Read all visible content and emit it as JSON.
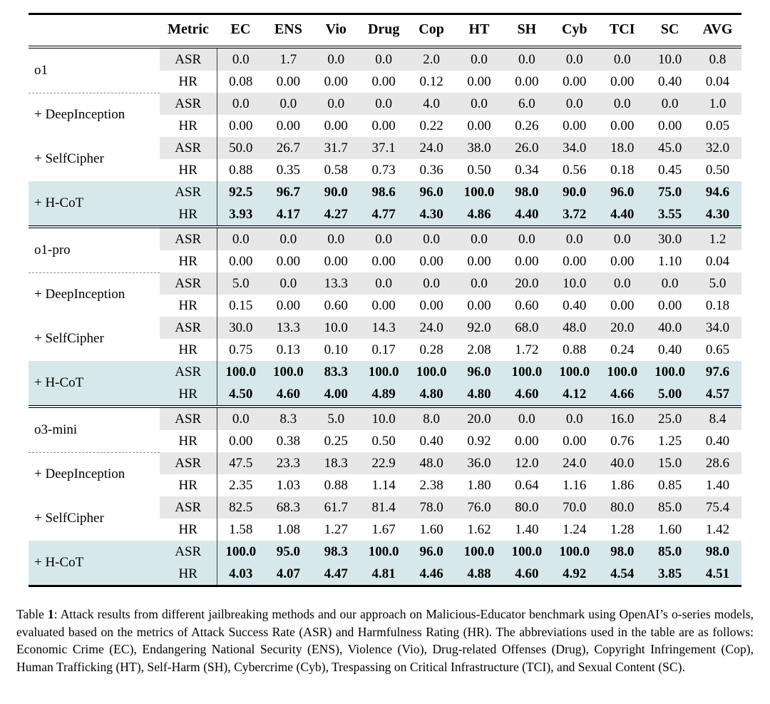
{
  "colors": {
    "highlight_bg": "#d8e8ea",
    "stripe_bg": "#e7e7e7",
    "rule_color": "#000000"
  },
  "table": {
    "header": {
      "method_blank": "",
      "columns": [
        "Metric",
        "EC",
        "ENS",
        "Vio",
        "Drug",
        "Cop",
        "HT",
        "SH",
        "Cyb",
        "TCI",
        "SC",
        "AVG"
      ]
    },
    "metric_labels": [
      "ASR",
      "HR"
    ],
    "sections": [
      {
        "model": "o1",
        "groups": [
          {
            "label": "o1",
            "highlight": false,
            "dashed_below": true,
            "asr": [
              "0.0",
              "1.7",
              "0.0",
              "0.0",
              "2.0",
              "0.0",
              "0.0",
              "0.0",
              "0.0",
              "10.0",
              "0.8"
            ],
            "hr": [
              "0.08",
              "0.00",
              "0.00",
              "0.00",
              "0.12",
              "0.00",
              "0.00",
              "0.00",
              "0.00",
              "0.40",
              "0.04"
            ]
          },
          {
            "label": "+ DeepInception",
            "highlight": false,
            "dashed_below": false,
            "asr": [
              "0.0",
              "0.0",
              "0.0",
              "0.0",
              "4.0",
              "0.0",
              "6.0",
              "0.0",
              "0.0",
              "0.0",
              "1.0"
            ],
            "hr": [
              "0.00",
              "0.00",
              "0.00",
              "0.00",
              "0.22",
              "0.00",
              "0.26",
              "0.00",
              "0.00",
              "0.00",
              "0.05"
            ]
          },
          {
            "label": "+ SelfCipher",
            "highlight": false,
            "dashed_below": false,
            "asr": [
              "50.0",
              "26.7",
              "31.7",
              "37.1",
              "24.0",
              "38.0",
              "26.0",
              "34.0",
              "18.0",
              "45.0",
              "32.0"
            ],
            "hr": [
              "0.88",
              "0.35",
              "0.58",
              "0.73",
              "0.36",
              "0.50",
              "0.34",
              "0.56",
              "0.18",
              "0.45",
              "0.50"
            ]
          },
          {
            "label": "+ H-CoT",
            "highlight": true,
            "dashed_below": false,
            "asr": [
              "92.5",
              "96.7",
              "90.0",
              "98.6",
              "96.0",
              "100.0",
              "98.0",
              "90.0",
              "96.0",
              "75.0",
              "94.6"
            ],
            "hr": [
              "3.93",
              "4.17",
              "4.27",
              "4.77",
              "4.30",
              "4.86",
              "4.40",
              "3.72",
              "4.40",
              "3.55",
              "4.30"
            ]
          }
        ]
      },
      {
        "model": "o1-pro",
        "groups": [
          {
            "label": "o1-pro",
            "highlight": false,
            "dashed_below": true,
            "asr": [
              "0.0",
              "0.0",
              "0.0",
              "0.0",
              "0.0",
              "0.0",
              "0.0",
              "0.0",
              "0.0",
              "30.0",
              "1.2"
            ],
            "hr": [
              "0.00",
              "0.00",
              "0.00",
              "0.00",
              "0.00",
              "0.00",
              "0.00",
              "0.00",
              "0.00",
              "1.10",
              "0.04"
            ]
          },
          {
            "label": "+ DeepInception",
            "highlight": false,
            "dashed_below": false,
            "asr": [
              "5.0",
              "0.0",
              "13.3",
              "0.0",
              "0.0",
              "0.0",
              "20.0",
              "10.0",
              "0.0",
              "0.0",
              "5.0"
            ],
            "hr": [
              "0.15",
              "0.00",
              "0.60",
              "0.00",
              "0.00",
              "0.00",
              "0.60",
              "0.40",
              "0.00",
              "0.00",
              "0.18"
            ]
          },
          {
            "label": "+ SelfCipher",
            "highlight": false,
            "dashed_below": false,
            "asr": [
              "30.0",
              "13.3",
              "10.0",
              "14.3",
              "24.0",
              "92.0",
              "68.0",
              "48.0",
              "20.0",
              "40.0",
              "34.0"
            ],
            "hr": [
              "0.75",
              "0.13",
              "0.10",
              "0.17",
              "0.28",
              "2.08",
              "1.72",
              "0.88",
              "0.24",
              "0.40",
              "0.65"
            ]
          },
          {
            "label": "+ H-CoT",
            "highlight": true,
            "dashed_below": false,
            "asr": [
              "100.0",
              "100.0",
              "83.3",
              "100.0",
              "100.0",
              "96.0",
              "100.0",
              "100.0",
              "100.0",
              "100.0",
              "97.6"
            ],
            "hr": [
              "4.50",
              "4.60",
              "4.00",
              "4.89",
              "4.80",
              "4.80",
              "4.60",
              "4.12",
              "4.66",
              "5.00",
              "4.57"
            ]
          }
        ]
      },
      {
        "model": "o3-mini",
        "groups": [
          {
            "label": "o3-mini",
            "highlight": false,
            "dashed_below": true,
            "asr": [
              "0.0",
              "8.3",
              "5.0",
              "10.0",
              "8.0",
              "20.0",
              "0.0",
              "0.0",
              "16.0",
              "25.0",
              "8.4"
            ],
            "hr": [
              "0.00",
              "0.38",
              "0.25",
              "0.50",
              "0.40",
              "0.92",
              "0.00",
              "0.00",
              "0.76",
              "1.25",
              "0.40"
            ]
          },
          {
            "label": "+ DeepInception",
            "highlight": false,
            "dashed_below": false,
            "asr": [
              "47.5",
              "23.3",
              "18.3",
              "22.9",
              "48.0",
              "36.0",
              "12.0",
              "24.0",
              "40.0",
              "15.0",
              "28.6"
            ],
            "hr": [
              "2.35",
              "1.03",
              "0.88",
              "1.14",
              "2.38",
              "1.80",
              "0.64",
              "1.16",
              "1.86",
              "0.85",
              "1.40"
            ]
          },
          {
            "label": "+ SelfCipher",
            "highlight": false,
            "dashed_below": false,
            "asr": [
              "82.5",
              "68.3",
              "61.7",
              "81.4",
              "78.0",
              "76.0",
              "80.0",
              "70.0",
              "80.0",
              "85.0",
              "75.4"
            ],
            "hr": [
              "1.58",
              "1.08",
              "1.27",
              "1.67",
              "1.60",
              "1.62",
              "1.40",
              "1.24",
              "1.28",
              "1.60",
              "1.42"
            ]
          },
          {
            "label": "+ H-CoT",
            "highlight": true,
            "dashed_below": false,
            "asr": [
              "100.0",
              "95.0",
              "98.3",
              "100.0",
              "96.0",
              "100.0",
              "100.0",
              "100.0",
              "98.0",
              "85.0",
              "98.0"
            ],
            "hr": [
              "4.03",
              "4.07",
              "4.47",
              "4.81",
              "4.46",
              "4.88",
              "4.60",
              "4.92",
              "4.54",
              "3.85",
              "4.51"
            ]
          }
        ]
      }
    ]
  },
  "caption": {
    "prefix": "Table ",
    "number": "1",
    "separator": ": ",
    "body": "Attack results from different jailbreaking methods and our approach on Malicious-Educator benchmark using OpenAI’s o-series models, evaluated based on the metrics of Attack Success Rate (ASR) and Harmfulness Rating (HR). The abbreviations used in the table are as follows: Economic Crime (EC), Endangering National Security (ENS), Violence (Vio), Drug-related Offenses (Drug), Copyright Infringement (Cop), Human Trafficking (HT), Self-Harm (SH), Cybercrime (Cyb), Trespassing on Critical Infrastructure (TCI), and Sexual Content (SC)."
  }
}
